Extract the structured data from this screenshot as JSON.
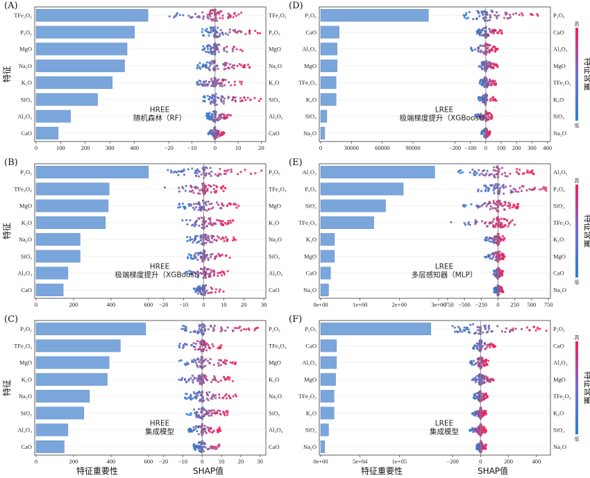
{
  "axis_titles": {
    "importance": "特征重要性",
    "shap": "SHAP值"
  },
  "ylabel": "特征",
  "colorbar": {
    "label": "特征含量",
    "high": "高",
    "low": "低",
    "colors": [
      "#ff1a53",
      "#6d6fe0",
      "#2a7fd6"
    ]
  },
  "colors": {
    "bar": "#7aa6dc",
    "bar_edge": "#5a86c0",
    "high": "#ff1a53",
    "low": "#2a7fd6"
  },
  "chart_data": [
    {
      "id": "A",
      "panel_label": "(A)",
      "target": "HREE",
      "model": "随机森林（RF）",
      "type": "bar",
      "features": [
        "TFe₂O₃",
        "P₂O₅",
        "MgO",
        "Na₂O",
        "K₂O",
        "SiO₂",
        "Al₂O₃",
        "CaO"
      ],
      "importance": [
        455,
        400,
        370,
        360,
        310,
        250,
        140,
        90
      ],
      "importance_ticks": [
        "0",
        "100",
        "200",
        "300",
        "400"
      ],
      "importance_lim": [
        0,
        480
      ],
      "shap_ticks": [
        "−20",
        "−10",
        "0",
        "10",
        "20"
      ],
      "shap_lim": [
        -24,
        22
      ],
      "shap_min": [
        -20,
        -6,
        -6,
        -8,
        -10,
        -6,
        -4,
        -3
      ],
      "shap_max": [
        12,
        20,
        14,
        16,
        12,
        20,
        8,
        4
      ]
    },
    {
      "id": "D",
      "panel_label": "(D)",
      "target": "LREE",
      "model": "极端梯度提升（XGBoost）",
      "type": "bar",
      "features": [
        "P₂O₅",
        "CaO",
        "Al₂O₃",
        "MgO",
        "TFe₂O₃",
        "K₂O",
        "SiO₂",
        "Na₂O"
      ],
      "importance": [
        105000,
        18000,
        16000,
        16000,
        15000,
        15000,
        6000,
        4000
      ],
      "importance_ticks": [
        "0",
        "30000",
        "60000",
        "90000"
      ],
      "importance_lim": [
        0,
        115000
      ],
      "shap_ticks": [
        "−200",
        "−100",
        "0",
        "100",
        "200",
        "300",
        "400"
      ],
      "shap_lim": [
        -270,
        420
      ],
      "shap_min": [
        -150,
        -60,
        -100,
        -50,
        -40,
        -50,
        -70,
        -30
      ],
      "shap_max": [
        390,
        110,
        80,
        80,
        70,
        70,
        40,
        30
      ]
    },
    {
      "id": "B",
      "panel_label": "(B)",
      "target": "HREE",
      "model": "极端梯度提升（XGBoost）",
      "type": "bar",
      "features": [
        "P₂O₅",
        "TFe₂O₃",
        "MgO",
        "K₂O",
        "Na₂O",
        "SiO₂",
        "Al₂O₃",
        "CaO"
      ],
      "importance": [
        600,
        390,
        385,
        370,
        235,
        235,
        170,
        145
      ],
      "importance_ticks": [
        "0",
        "200",
        "400",
        "600"
      ],
      "importance_lim": [
        0,
        630
      ],
      "shap_ticks": [
        "−20",
        "−10",
        "0",
        "10",
        "20",
        "30"
      ],
      "shap_lim": [
        -22,
        31
      ],
      "shap_min": [
        -18,
        -20,
        -13,
        -13,
        -9,
        -8,
        -10,
        -5
      ],
      "shap_max": [
        30,
        12,
        18,
        15,
        16,
        13,
        12,
        10
      ]
    },
    {
      "id": "E",
      "panel_label": "(E)",
      "target": "LREE",
      "model": "多层感知器（MLP）",
      "type": "bar",
      "features": [
        "Al₂O₃",
        "P₂O₅",
        "SiO₂",
        "TFe₂O₃",
        "K₂O",
        "MgO",
        "CaO",
        "Na₂O"
      ],
      "importance": [
        2.9,
        2.1,
        1.65,
        1.35,
        0.35,
        0.35,
        0.25,
        0.2
      ],
      "importance_ticks": [
        "0e+00",
        "1e+00",
        "2e+00",
        "3e+00"
      ],
      "importance_lim": [
        0,
        3.0
      ],
      "shap_ticks": [
        "−750",
        "−500",
        "−250",
        "0",
        "250",
        "500",
        "750"
      ],
      "shap_lim": [
        -800,
        780
      ],
      "shap_min": [
        -600,
        -320,
        -550,
        -700,
        -200,
        -200,
        -80,
        -60
      ],
      "shap_max": [
        550,
        750,
        300,
        270,
        100,
        100,
        80,
        80
      ]
    },
    {
      "id": "C",
      "panel_label": "(C)",
      "target": "HREE",
      "model": "集成模型",
      "type": "bar",
      "features": [
        "P₂O₅",
        "TFe₂O₃",
        "MgO",
        "K₂O",
        "Na₂O",
        "SiO₂",
        "Al₂O₃",
        "CaO"
      ],
      "importance": [
        585,
        450,
        390,
        380,
        285,
        255,
        170,
        150
      ],
      "importance_ticks": [
        "0",
        "200",
        "400",
        "600"
      ],
      "importance_lim": [
        0,
        630
      ],
      "shap_ticks": [
        "−20",
        "−10",
        "0",
        "10",
        "20",
        "30"
      ],
      "shap_lim": [
        -22,
        33
      ],
      "shap_min": [
        -12,
        -14,
        -12,
        -13,
        -9,
        -8,
        -8,
        -5
      ],
      "shap_max": [
        30,
        10,
        18,
        16,
        18,
        14,
        10,
        10
      ]
    },
    {
      "id": "F",
      "panel_label": "(F)",
      "target": "LREE",
      "model": "集成模型",
      "type": "bar",
      "features": [
        "P₂O₅",
        "CaO",
        "Al₂O₃",
        "MgO",
        "TFe₂O₃",
        "K₂O",
        "SiO₂",
        "Na₂O"
      ],
      "importance": [
        140000,
        20000,
        20000,
        19000,
        17000,
        17000,
        10000,
        5000
      ],
      "importance_ticks": [
        "0e+00",
        "5e+04",
        "1e+05"
      ],
      "importance_lim": [
        0,
        150000
      ],
      "shap_ticks": [
        "−200",
        "0",
        "200",
        "400"
      ],
      "shap_lim": [
        -260,
        500
      ],
      "shap_min": [
        -230,
        -60,
        -80,
        -60,
        -50,
        -60,
        -80,
        -30
      ],
      "shap_max": [
        480,
        110,
        60,
        110,
        50,
        40,
        40,
        40
      ]
    }
  ]
}
